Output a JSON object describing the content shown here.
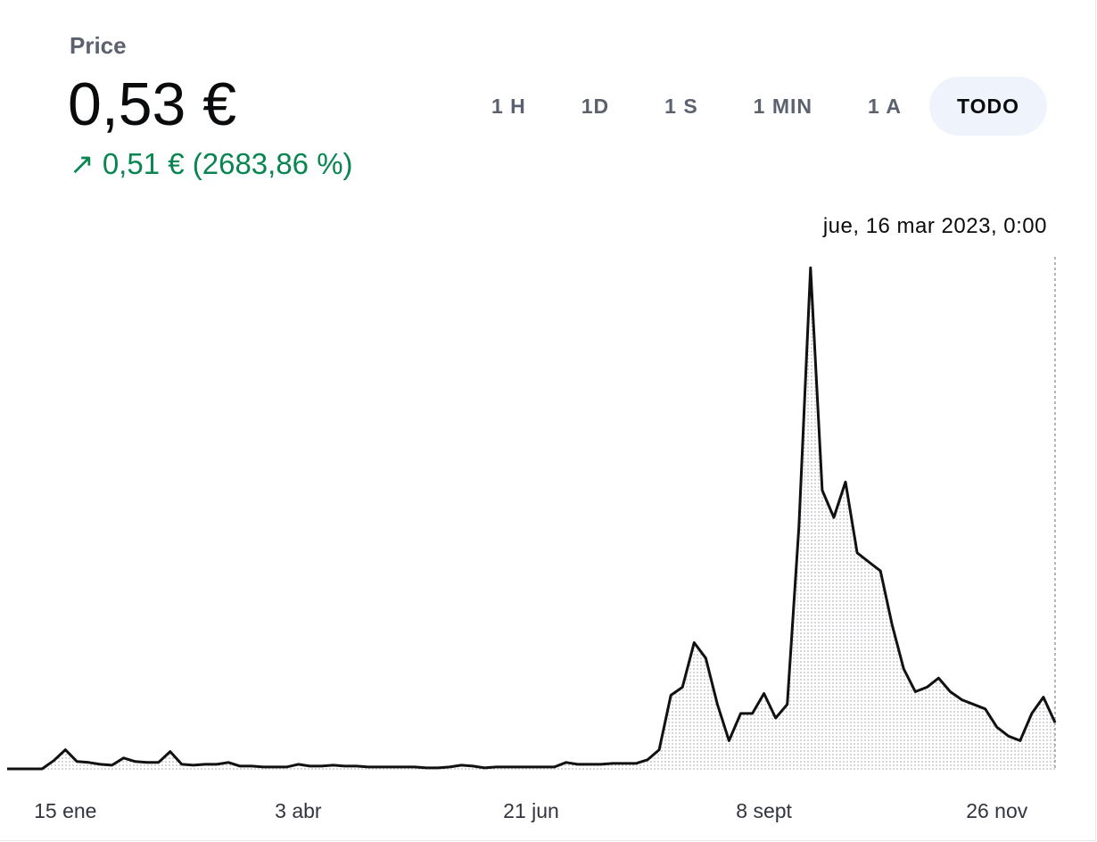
{
  "header": {
    "label": "Price",
    "price": "0,53 €",
    "change_arrow": "↗",
    "change": "0,51 € (2683,86 %)"
  },
  "ranges": [
    {
      "label": "1 H"
    },
    {
      "label": "1D"
    },
    {
      "label": "1 S"
    },
    {
      "label": "1 MIN"
    },
    {
      "label": "1 A"
    },
    {
      "label": "TODO",
      "active": true
    }
  ],
  "tooltip": "jue, 16 mar 2023, 0:00",
  "chart_data": {
    "type": "line",
    "color": "#111111",
    "categories": [
      null,
      null,
      null,
      null,
      null,
      "15 ene",
      null,
      null,
      null,
      null,
      null,
      null,
      null,
      null,
      null,
      null,
      null,
      null,
      null,
      null,
      null,
      null,
      null,
      null,
      null,
      "3 abr",
      null,
      null,
      null,
      null,
      null,
      null,
      null,
      null,
      null,
      null,
      null,
      null,
      null,
      null,
      null,
      null,
      null,
      null,
      null,
      "21 jun",
      null,
      null,
      null,
      null,
      null,
      null,
      null,
      null,
      null,
      null,
      null,
      null,
      null,
      null,
      null,
      null,
      null,
      null,
      null,
      "8 sept",
      null,
      null,
      null,
      null,
      null,
      null,
      null,
      null,
      null,
      null,
      null,
      null,
      null,
      null,
      null,
      null,
      null,
      null,
      null,
      "26 nov",
      null,
      null,
      null,
      null,
      null
    ],
    "values": [
      0.02,
      0.02,
      0.02,
      0.02,
      0.11,
      0.23,
      0.1,
      0.09,
      0.07,
      0.06,
      0.14,
      0.1,
      0.09,
      0.09,
      0.21,
      0.07,
      0.06,
      0.07,
      0.07,
      0.09,
      0.05,
      0.05,
      0.04,
      0.04,
      0.04,
      0.07,
      0.05,
      0.05,
      0.06,
      0.05,
      0.05,
      0.04,
      0.04,
      0.04,
      0.04,
      0.04,
      0.03,
      0.03,
      0.04,
      0.06,
      0.05,
      0.03,
      0.04,
      0.04,
      0.04,
      0.04,
      0.04,
      0.04,
      0.09,
      0.07,
      0.07,
      0.07,
      0.08,
      0.08,
      0.08,
      0.12,
      0.23,
      0.83,
      0.92,
      1.41,
      1.24,
      0.73,
      0.33,
      0.63,
      0.63,
      0.85,
      0.58,
      0.73,
      2.69,
      5.54,
      3.09,
      2.79,
      3.18,
      2.4,
      2.3,
      2.2,
      1.61,
      1.12,
      0.87,
      0.92,
      1.02,
      0.87,
      0.78,
      0.73,
      0.68,
      0.48,
      0.38,
      0.33,
      0.63,
      0.81,
      0.53
    ],
    "ylim": [
      0,
      5.7
    ]
  }
}
